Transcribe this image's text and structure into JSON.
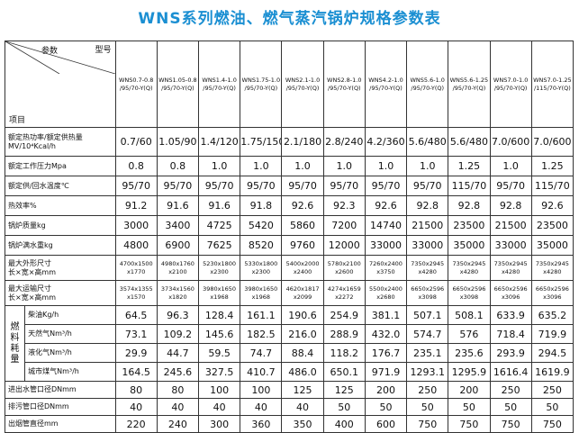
{
  "title": "WNS系列燃油、燃气蒸汽锅炉规格参数表",
  "header": {
    "param": "参数",
    "model": "型号",
    "item": "项目"
  },
  "models": [
    "WNS0.7-0.8\n/95/70-Y(Q)",
    "WNS1.05-0.8\n/95/70-Y(Q)",
    "WNS1.4-1.0\n/95/70-Y(Q)",
    "WNS1.75-1.0\n/95/70-Y(Q)",
    "WNS2.1-1.0\n/95/70-Y(Q)",
    "WNS2.8-1.0\n/95/70-Y(Q)",
    "WNS4.2-1.0\n/95/70-Y(Q)",
    "WNS5.6-1.0\n/95/70-Y(Q)",
    "WNS5.6-1.25\n/95/70-Y(Q)",
    "WNS7.0-1.0\n/95/70-Y(Q)",
    "WNS7.0-1.25\n/115/70-Y(Q)"
  ],
  "rows": [
    {
      "label": "额定热功率/额定供热量MV/10⁴Kcal/h",
      "values": [
        "0.7/60",
        "1.05/90",
        "1.4/120",
        "1.75/150",
        "2.1/180",
        "2.8/240",
        "4.2/360",
        "5.6/480",
        "5.6/480",
        "7.0/600",
        "7.0/600"
      ]
    },
    {
      "label": "额定工作压力Mpa",
      "values": [
        "0.8",
        "0.8",
        "1.0",
        "1.0",
        "1.0",
        "1.0",
        "1.0",
        "1.0",
        "1.25",
        "1.0",
        "1.25"
      ]
    },
    {
      "label": "额定供/回水温度℃",
      "values": [
        "95/70",
        "95/70",
        "95/70",
        "95/70",
        "95/70",
        "95/70",
        "95/70",
        "95/70",
        "115/70",
        "95/70",
        "115/70"
      ]
    },
    {
      "label": "热效率%",
      "values": [
        "91.2",
        "91.6",
        "91.6",
        "91.8",
        "92.6",
        "92.3",
        "92.6",
        "92.8",
        "92.8",
        "92.8",
        "92.6"
      ]
    },
    {
      "label": "锅炉质量kg",
      "values": [
        "3000",
        "3400",
        "4725",
        "5420",
        "5860",
        "7200",
        "14740",
        "21500",
        "23500",
        "21500",
        "23500"
      ]
    },
    {
      "label": "锅炉满水重kg",
      "values": [
        "4800",
        "6900",
        "7625",
        "8520",
        "9760",
        "12000",
        "33000",
        "33000",
        "35000",
        "33000",
        "35000"
      ]
    },
    {
      "label": "最大外形尺寸\n长×宽×高mm",
      "values": [
        "4700x1500\nx1770",
        "4980x1760\nx2100",
        "5230x1800\nx2300",
        "5330x1800\nx2300",
        "5400x2000\nx2400",
        "5780x2100\nx2600",
        "7260x2400\nx3750",
        "7350x2945\nx4280",
        "7350x2945\nx4280",
        "7350x2945\nx4280",
        "7350x2945\nx4280"
      ]
    },
    {
      "label": "最大运输尺寸\n长×宽×高mm",
      "values": [
        "3574x1355\nx1570",
        "3734x1560\nx1820",
        "3980x1650\nx1968",
        "3980x1650\nx1968",
        "4620x1817\nx2099",
        "4274x1659\nx2272",
        "5500x2400\nx2680",
        "6650x2596\nx3098",
        "6650x2596\nx3098",
        "6650x2596\nx3096",
        "6650x2596\nx3096"
      ]
    }
  ],
  "fuel": {
    "label": "燃料耗量",
    "rows": [
      {
        "label": "柴油Kg/h",
        "values": [
          "64.5",
          "96.3",
          "128.4",
          "161.1",
          "190.6",
          "254.9",
          "381.1",
          "507.1",
          "508.1",
          "633.9",
          "635.2"
        ]
      },
      {
        "label": "天然气Nm³/h",
        "values": [
          "73.1",
          "109.2",
          "145.6",
          "182.5",
          "216.0",
          "288.9",
          "432.0",
          "574.7",
          "576",
          "718.4",
          "719.9"
        ]
      },
      {
        "label": "液化气Nm³/h",
        "values": [
          "29.9",
          "44.7",
          "59.5",
          "74.7",
          "88.4",
          "118.2",
          "176.7",
          "235.1",
          "235.6",
          "293.9",
          "294.5"
        ]
      },
      {
        "label": "城市煤气Nm³/h",
        "values": [
          "164.5",
          "245.6",
          "327.5",
          "410.7",
          "486.0",
          "650.1",
          "971.9",
          "1293.1",
          "1295.9",
          "1616.4",
          "1619.9"
        ]
      }
    ]
  },
  "pipes": [
    {
      "label": "进出水管口径DNmm",
      "values": [
        "80",
        "80",
        "100",
        "100",
        "125",
        "125",
        "200",
        "250",
        "200",
        "250",
        "250"
      ]
    },
    {
      "label": "排污管口径DNmm",
      "values": [
        "40",
        "40",
        "40",
        "40",
        "40",
        "50",
        "50",
        "50",
        "50",
        "50",
        "50"
      ]
    },
    {
      "label": "出烟管直径mm",
      "values": [
        "220",
        "240",
        "300",
        "360",
        "350",
        "400",
        "600",
        "750",
        "750",
        "750",
        "750"
      ]
    }
  ]
}
